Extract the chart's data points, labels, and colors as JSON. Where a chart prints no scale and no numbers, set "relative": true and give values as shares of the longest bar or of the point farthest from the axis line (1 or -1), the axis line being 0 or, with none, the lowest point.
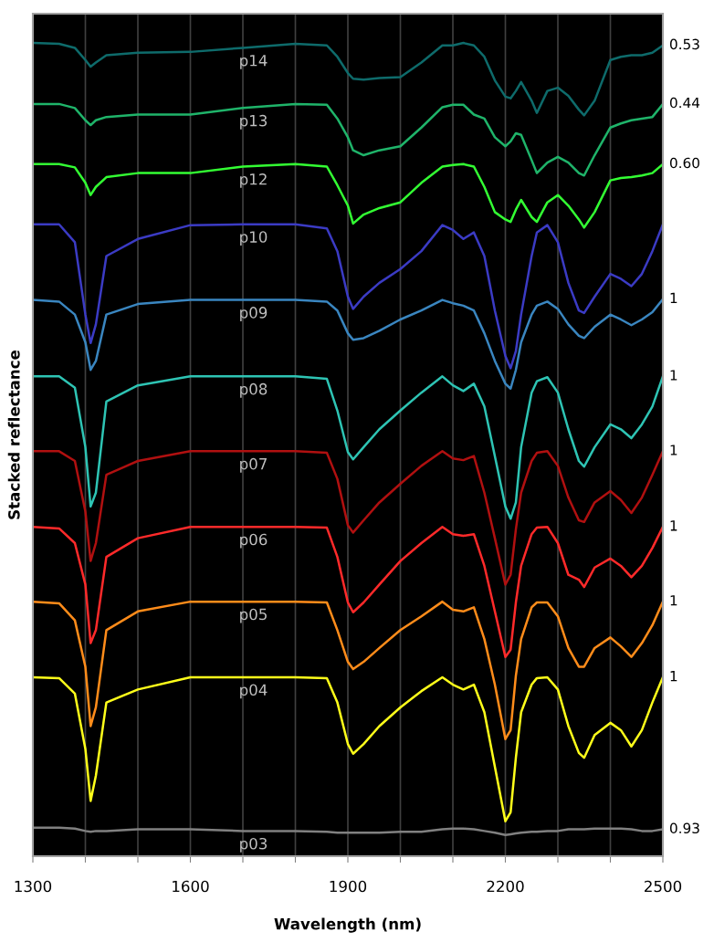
{
  "chart_data": {
    "type": "line",
    "relative": true,
    "xlabel": "Wavelength (nm)",
    "ylabel": "Stacked reflectance",
    "x": [
      1300,
      1350,
      1380,
      1400,
      1410,
      1420,
      1440,
      1500,
      1600,
      1700,
      1800,
      1860,
      1880,
      1900,
      1910,
      1930,
      1960,
      2000,
      2040,
      2080,
      2100,
      2120,
      2140,
      2160,
      2180,
      2200,
      2210,
      2220,
      2230,
      2250,
      2260,
      2280,
      2300,
      2320,
      2340,
      2350,
      2370,
      2400,
      2420,
      2440,
      2460,
      2480,
      2500
    ],
    "xlim": [
      1300,
      2500
    ],
    "xticks": [
      1300,
      {
        "value": 1400,
        "label": null
      },
      {
        "value": 1500,
        "label": null
      },
      1600,
      {
        "value": 1700,
        "label": null
      },
      {
        "value": 1800,
        "label": null
      },
      1900,
      {
        "value": 2000,
        "label": null
      },
      {
        "value": 2100,
        "label": null
      },
      2200,
      {
        "value": 2300,
        "label": null
      },
      {
        "value": 2400,
        "label": null
      },
      2500
    ],
    "grid": "x",
    "legend": false,
    "marker": "none",
    "line_style": "solid",
    "series": [
      {
        "name": "p14",
        "color": "#0e6b6b",
        "values": [
          1.0,
          0.999,
          0.994,
          0.979,
          0.971,
          0.976,
          0.985,
          0.988,
          0.989,
          0.994,
          0.999,
          0.997,
          0.983,
          0.963,
          0.956,
          0.955,
          0.957,
          0.958,
          0.976,
          0.997,
          0.997,
          1.0,
          0.997,
          0.983,
          0.954,
          0.934,
          0.932,
          0.941,
          0.952,
          0.929,
          0.914,
          0.941,
          0.945,
          0.935,
          0.918,
          0.911,
          0.929,
          0.979,
          0.983,
          0.985,
          0.985,
          0.988,
          0.997
        ]
      },
      {
        "name": "p13",
        "color": "#1fb46a",
        "values": [
          0.925,
          0.925,
          0.92,
          0.905,
          0.899,
          0.905,
          0.909,
          0.912,
          0.912,
          0.92,
          0.925,
          0.924,
          0.907,
          0.884,
          0.868,
          0.862,
          0.868,
          0.873,
          0.896,
          0.921,
          0.924,
          0.924,
          0.912,
          0.907,
          0.884,
          0.873,
          0.879,
          0.889,
          0.887,
          0.856,
          0.84,
          0.853,
          0.86,
          0.853,
          0.84,
          0.837,
          0.862,
          0.896,
          0.901,
          0.905,
          0.907,
          0.909,
          0.925
        ]
      },
      {
        "name": "p12",
        "color": "#33ff33",
        "values": [
          0.851,
          0.851,
          0.847,
          0.828,
          0.813,
          0.823,
          0.835,
          0.84,
          0.84,
          0.848,
          0.851,
          0.848,
          0.825,
          0.8,
          0.778,
          0.789,
          0.797,
          0.804,
          0.828,
          0.848,
          0.85,
          0.851,
          0.848,
          0.823,
          0.792,
          0.783,
          0.78,
          0.795,
          0.807,
          0.786,
          0.78,
          0.804,
          0.813,
          0.8,
          0.783,
          0.773,
          0.792,
          0.831,
          0.834,
          0.835,
          0.837,
          0.84,
          0.851
        ]
      },
      {
        "name": "p10",
        "color": "#3b3bc4",
        "values": [
          0.777,
          0.777,
          0.755,
          0.666,
          0.631,
          0.654,
          0.738,
          0.759,
          0.776,
          0.777,
          0.777,
          0.772,
          0.744,
          0.688,
          0.673,
          0.688,
          0.705,
          0.722,
          0.744,
          0.776,
          0.77,
          0.759,
          0.767,
          0.738,
          0.671,
          0.615,
          0.6,
          0.621,
          0.666,
          0.738,
          0.767,
          0.776,
          0.755,
          0.705,
          0.671,
          0.668,
          0.688,
          0.716,
          0.71,
          0.701,
          0.716,
          0.744,
          0.777
        ]
      },
      {
        "name": "p09",
        "color": "#3a86c0",
        "values": [
          0.684,
          0.682,
          0.666,
          0.632,
          0.598,
          0.609,
          0.666,
          0.679,
          0.684,
          0.684,
          0.684,
          0.682,
          0.671,
          0.643,
          0.635,
          0.637,
          0.646,
          0.66,
          0.671,
          0.684,
          0.68,
          0.677,
          0.671,
          0.643,
          0.609,
          0.581,
          0.575,
          0.598,
          0.632,
          0.666,
          0.677,
          0.682,
          0.673,
          0.654,
          0.64,
          0.637,
          0.651,
          0.666,
          0.66,
          0.653,
          0.66,
          0.669,
          0.685
        ]
      },
      {
        "name": "p08",
        "color": "#2ec4b4",
        "values": [
          0.59,
          0.59,
          0.576,
          0.503,
          0.43,
          0.447,
          0.559,
          0.579,
          0.59,
          0.59,
          0.59,
          0.587,
          0.548,
          0.497,
          0.488,
          0.503,
          0.525,
          0.548,
          0.57,
          0.59,
          0.579,
          0.572,
          0.581,
          0.553,
          0.492,
          0.43,
          0.415,
          0.435,
          0.503,
          0.57,
          0.584,
          0.589,
          0.57,
          0.525,
          0.486,
          0.479,
          0.503,
          0.531,
          0.525,
          0.514,
          0.531,
          0.553,
          0.59
        ]
      },
      {
        "name": "p07",
        "color": "#b01010",
        "values": [
          0.498,
          0.498,
          0.486,
          0.424,
          0.363,
          0.385,
          0.469,
          0.486,
          0.498,
          0.498,
          0.498,
          0.496,
          0.464,
          0.407,
          0.398,
          0.413,
          0.435,
          0.458,
          0.48,
          0.498,
          0.489,
          0.487,
          0.492,
          0.447,
          0.391,
          0.334,
          0.346,
          0.402,
          0.447,
          0.486,
          0.496,
          0.498,
          0.48,
          0.441,
          0.413,
          0.411,
          0.435,
          0.449,
          0.438,
          0.422,
          0.441,
          0.469,
          0.498
        ]
      },
      {
        "name": "p06",
        "color": "#ff2a2a",
        "values": [
          0.405,
          0.403,
          0.385,
          0.334,
          0.262,
          0.278,
          0.368,
          0.391,
          0.405,
          0.405,
          0.405,
          0.404,
          0.368,
          0.312,
          0.3,
          0.312,
          0.334,
          0.363,
          0.385,
          0.405,
          0.396,
          0.394,
          0.396,
          0.357,
          0.301,
          0.245,
          0.254,
          0.312,
          0.357,
          0.396,
          0.404,
          0.405,
          0.385,
          0.346,
          0.34,
          0.331,
          0.355,
          0.366,
          0.357,
          0.343,
          0.357,
          0.379,
          0.405
        ]
      },
      {
        "name": "p05",
        "color": "#ff8c1a",
        "values": [
          0.313,
          0.311,
          0.29,
          0.233,
          0.16,
          0.183,
          0.278,
          0.301,
          0.313,
          0.313,
          0.313,
          0.312,
          0.278,
          0.239,
          0.23,
          0.239,
          0.256,
          0.278,
          0.295,
          0.313,
          0.303,
          0.301,
          0.306,
          0.267,
          0.211,
          0.144,
          0.155,
          0.222,
          0.267,
          0.306,
          0.312,
          0.312,
          0.295,
          0.256,
          0.233,
          0.233,
          0.256,
          0.269,
          0.258,
          0.245,
          0.262,
          0.284,
          0.313
        ]
      },
      {
        "name": "p04",
        "color": "#ffff1a",
        "values": [
          0.22,
          0.219,
          0.2,
          0.132,
          0.068,
          0.099,
          0.189,
          0.205,
          0.22,
          0.22,
          0.22,
          0.219,
          0.189,
          0.138,
          0.126,
          0.138,
          0.16,
          0.183,
          0.203,
          0.22,
          0.211,
          0.205,
          0.211,
          0.177,
          0.11,
          0.043,
          0.054,
          0.121,
          0.177,
          0.211,
          0.219,
          0.22,
          0.205,
          0.16,
          0.127,
          0.121,
          0.149,
          0.164,
          0.155,
          0.135,
          0.155,
          0.189,
          0.22
        ]
      },
      {
        "name": "p03",
        "color": "#808080",
        "values": [
          0.035,
          0.035,
          0.034,
          0.031,
          0.03,
          0.031,
          0.031,
          0.033,
          0.033,
          0.031,
          0.031,
          0.03,
          0.029,
          0.029,
          0.029,
          0.029,
          0.029,
          0.03,
          0.03,
          0.033,
          0.034,
          0.034,
          0.033,
          0.031,
          0.029,
          0.026,
          0.027,
          0.028,
          0.029,
          0.03,
          0.03,
          0.031,
          0.031,
          0.033,
          0.033,
          0.033,
          0.034,
          0.034,
          0.034,
          0.033,
          0.031,
          0.031,
          0.033
        ]
      }
    ],
    "annotations": [
      "0.53",
      "0.44",
      "0.60",
      "1",
      "1",
      "1",
      "1",
      "1",
      "1",
      "0.93"
    ]
  }
}
